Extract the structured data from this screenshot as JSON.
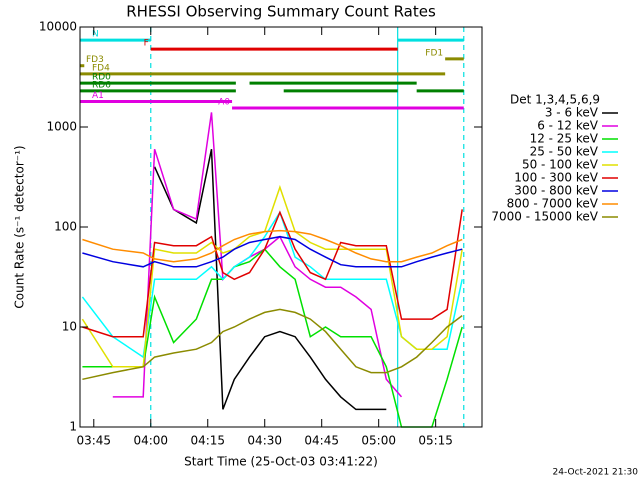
{
  "chart_data": {
    "type": "line",
    "title": "RHESSI Observing Summary Count Rates",
    "xlabel": "Start Time (25-Oct-03 03:41:22)",
    "ylabel": "Count Rate (s⁻¹ detector⁻¹)",
    "legend_title": "Det 1,3,4,5,6,9",
    "footer": "24-Oct-2021 21:30",
    "log_y": true,
    "xlim": [
      221.37,
      327.2
    ],
    "ylim": [
      1,
      10000
    ],
    "xticks": [
      {
        "value": 225,
        "label": "03:45"
      },
      {
        "value": 240,
        "label": "04:00"
      },
      {
        "value": 255,
        "label": "04:15"
      },
      {
        "value": 270,
        "label": "04:30"
      },
      {
        "value": 285,
        "label": "04:45"
      },
      {
        "value": 300,
        "label": "05:00"
      },
      {
        "value": 315,
        "label": "05:15"
      }
    ],
    "yticks": [
      1,
      10,
      100,
      1000,
      10000
    ],
    "x": [
      222,
      230,
      238,
      241,
      246,
      252,
      256,
      259,
      262,
      266,
      270,
      274,
      278,
      282,
      286,
      290,
      294,
      298,
      302,
      306,
      310,
      314,
      318,
      322
    ],
    "series": [
      {
        "name": "3 - 6 keV",
        "color": "#000000",
        "values": [
          null,
          null,
          null,
          400,
          150,
          110,
          600,
          1.5,
          3,
          5,
          8,
          9,
          8,
          5,
          3,
          2,
          1.5,
          1.5,
          1.5,
          null,
          null,
          null,
          null,
          null
        ]
      },
      {
        "name": "6 - 12 keV",
        "color": "#e000e0",
        "values": [
          null,
          2,
          2,
          600,
          150,
          120,
          1400,
          30,
          40,
          50,
          60,
          80,
          40,
          30,
          25,
          25,
          20,
          15,
          3,
          2,
          null,
          null,
          null,
          null
        ]
      },
      {
        "name": "12 - 25 keV",
        "color": "#00e000",
        "values": [
          4,
          4,
          4,
          20,
          7,
          12,
          30,
          30,
          40,
          45,
          60,
          40,
          30,
          8,
          10,
          8,
          8,
          8,
          4,
          1,
          1,
          1,
          3,
          10
        ]
      },
      {
        "name": "25 - 50 keV",
        "color": "#00ffff",
        "values": [
          20,
          8,
          5,
          30,
          30,
          30,
          40,
          30,
          40,
          50,
          80,
          140,
          50,
          40,
          30,
          30,
          30,
          30,
          30,
          8,
          6,
          6,
          6,
          30
        ]
      },
      {
        "name": "50 - 100 keV",
        "color": "#e0e000",
        "values": [
          12,
          4,
          4,
          60,
          55,
          55,
          70,
          55,
          60,
          80,
          90,
          250,
          90,
          70,
          60,
          60,
          60,
          60,
          60,
          8,
          6,
          6,
          8,
          60
        ]
      },
      {
        "name": "100 - 300 keV",
        "color": "#e00000",
        "values": [
          10,
          8,
          8,
          70,
          65,
          65,
          80,
          35,
          30,
          35,
          60,
          140,
          60,
          35,
          30,
          70,
          65,
          65,
          65,
          12,
          12,
          12,
          15,
          150
        ]
      },
      {
        "name": "300 - 800 keV",
        "color": "#0000e0",
        "values": [
          55,
          45,
          40,
          45,
          40,
          40,
          45,
          50,
          60,
          70,
          75,
          80,
          75,
          60,
          50,
          42,
          40,
          40,
          40,
          40,
          45,
          50,
          55,
          60
        ]
      },
      {
        "name": "800 - 7000 keV",
        "color": "#ff8c00",
        "values": [
          75,
          60,
          55,
          48,
          45,
          48,
          55,
          65,
          75,
          85,
          90,
          92,
          90,
          85,
          75,
          65,
          55,
          48,
          45,
          45,
          50,
          55,
          65,
          75
        ]
      },
      {
        "name": "7000 - 15000 keV",
        "color": "#8b8b00",
        "values": [
          3,
          3.5,
          4,
          5,
          5.5,
          6,
          7,
          9,
          10,
          12,
          14,
          15,
          14,
          12,
          9,
          6,
          4,
          3.5,
          3.5,
          4,
          5,
          7,
          10,
          13
        ]
      }
    ],
    "flags": [
      {
        "label": "N",
        "color": "#00e0e0",
        "y": 7400,
        "spans": [
          [
            221.37,
            240
          ],
          [
            305,
            322.4
          ]
        ]
      },
      {
        "label": "F",
        "color": "#e00000",
        "y": 6000,
        "spans": [
          [
            240,
            305
          ]
        ]
      },
      {
        "label": "FD1",
        "color": "#8b8b00",
        "y": 4800,
        "spans": [
          [
            317.5,
            322.4
          ]
        ]
      },
      {
        "label": "FD3",
        "color": "#8b8b00",
        "y": 4100,
        "spans": [
          [
            221.37,
            222.5
          ]
        ]
      },
      {
        "label": "FD4",
        "color": "#8b8b00",
        "y": 3400,
        "spans": [
          [
            221.37,
            317.5
          ]
        ]
      },
      {
        "label": "RD0",
        "color": "#008000",
        "y": 2750,
        "spans": [
          [
            221.37,
            262.4
          ],
          [
            266,
            310
          ]
        ]
      },
      {
        "label": "RD6",
        "color": "#008000",
        "y": 2300,
        "spans": [
          [
            221.37,
            262.4
          ],
          [
            275,
            305
          ],
          [
            310,
            322.4
          ]
        ]
      },
      {
        "label": "A1",
        "color": "#e000e0",
        "y": 1800,
        "spans": [
          [
            221.37,
            261.4
          ]
        ]
      },
      {
        "label": "A0",
        "color": "#e000e0",
        "y": 1550,
        "spans": [
          [
            261.4,
            322.4
          ]
        ]
      }
    ],
    "night_lines": [
      {
        "value": 240,
        "dashed": true
      },
      {
        "value": 305,
        "dashed": false
      },
      {
        "value": 322.4,
        "dashed": true
      }
    ]
  }
}
